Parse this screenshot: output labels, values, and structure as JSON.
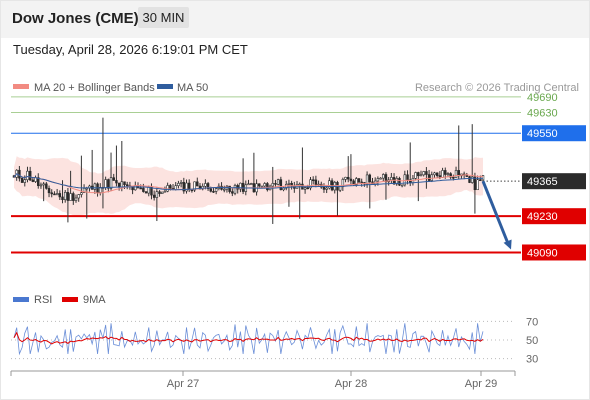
{
  "header": {
    "title": "Dow Jones (CME)",
    "interval": "30 MIN"
  },
  "timestamp": "Tuesday, April 28, 2026 6:19:01 PM CET",
  "legend": [
    {
      "label": "MA 20 + Bollinger Bands",
      "color": "#f28b82"
    },
    {
      "label": "MA 50",
      "color": "#2f5d9e"
    }
  ],
  "credit": "Research © 2026 Trading Central",
  "chart_data": [
    {
      "type": "candlestick",
      "ylim": [
        48980,
        49790
      ],
      "x_ticks": [
        "Apr 27",
        "Apr 28",
        "Apr 29"
      ],
      "last_price": {
        "value": 49365,
        "label": "49365"
      },
      "levels": [
        {
          "value": 49690,
          "label": "49690",
          "style": "resistance",
          "color": "#6aa84f"
        },
        {
          "value": 49630,
          "label": "49630",
          "style": "resistance",
          "color": "#6aa84f"
        },
        {
          "value": 49550,
          "label": "49550",
          "style": "pivot",
          "color": "#1f6feb"
        },
        {
          "value": 49230,
          "label": "49230",
          "style": "support",
          "color": "#e00000"
        },
        {
          "value": 49090,
          "label": "49090",
          "style": "support",
          "color": "#e00000"
        }
      ],
      "projection": {
        "from": 49365,
        "to": 49090,
        "color": "#2f5d9e"
      },
      "bands_color": "#fbd9d6",
      "candle_up_color": "#26a69a",
      "candle_down_color": "#c62828",
      "ma20_color": "#f28b82",
      "ma50_color": "#2f5d9e"
    },
    {
      "type": "line",
      "legend": [
        {
          "label": "RSI",
          "color": "#4a78d0"
        },
        {
          "label": "9MA",
          "color": "#e00000"
        }
      ],
      "ylim": [
        22,
        78
      ],
      "y_ticks": [
        "70",
        "50",
        "30"
      ]
    }
  ]
}
